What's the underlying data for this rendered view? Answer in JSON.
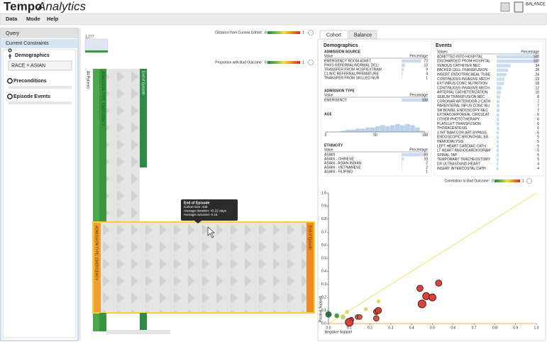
{
  "header": {
    "title_bold": "Tempo",
    "title_italic": "Analytics",
    "balance_label": "BALANCE"
  },
  "menu": [
    "Data",
    "Mode",
    "Help"
  ],
  "sidebar": {
    "tab": "Query",
    "section": "Current Constraints",
    "demographics": "Demographics",
    "constraint": "RACE = ASIAN",
    "preconditions": "Preconditions",
    "episode_events": "Episode Events"
  },
  "flow": {
    "cohort_size": "1,277",
    "distance_legend": {
      "label": "Distance from Current Cohort:",
      "min": 0,
      "max": 1
    },
    "outcome_legend": {
      "label": "Proportion with Bad Outcome:",
      "min": 0,
      "max": 1
    },
    "start_label": "All Patients",
    "end_label": "End of Episode",
    "constraint_label": "ADMISSION TYPE: EMERGENCY",
    "tooltip": {
      "title": "End of Episode",
      "lines": [
        "Cohort size: 436",
        "Average duration: 43.22 days",
        "Average outcome: 0.15"
      ]
    }
  },
  "tabs": [
    "Cohort",
    "Balance"
  ],
  "demographics": {
    "title": "Demographics",
    "sections": [
      {
        "name": "ADMISSION SOURCE",
        "columns": [
          "Value",
          "Percentage"
        ],
        "rows": [
          [
            "EMERGENCY ROOM ADMIT",
            73
          ],
          [
            "PHYS REFERRAL/NORMAL DELI",
            13
          ],
          [
            "TRANSFER FROM HOSP/EXTRAM",
            9
          ],
          [
            "CLINIC REFERRAL/PREMATURE",
            4
          ],
          [
            "TRANSFER FROM SKILLED NUR",
            1
          ]
        ]
      },
      {
        "name": "ADMISSION TYPE",
        "columns": [
          "Value",
          "Percentage"
        ],
        "rows": [
          [
            "EMERGENCY",
            100
          ]
        ]
      },
      {
        "name": "ETHNICITY",
        "columns": [
          "Value",
          "Percentage"
        ],
        "rows": [
          [
            "ASIAN",
            84
          ],
          [
            "ASIAN - CHINESE",
            10
          ],
          [
            "ASIAN - ASIAN INDIAN",
            2
          ],
          [
            "ASIAN - VIETNAMESE",
            2
          ],
          [
            "ASIAN - FILIPINO",
            1
          ]
        ]
      }
    ],
    "age": {
      "name": "AGE",
      "xlim": [
        0,
        100
      ],
      "xticks": [
        0,
        50,
        100
      ],
      "bins": [
        0,
        5,
        10,
        15,
        20,
        25,
        30,
        35,
        40,
        45,
        50,
        55,
        60,
        65,
        70,
        75,
        80,
        85,
        90,
        95,
        100
      ],
      "counts": [
        0,
        0,
        0,
        1,
        2,
        2,
        3,
        3,
        4,
        4,
        5,
        6,
        5,
        6,
        7,
        6,
        7,
        6,
        4,
        1
      ]
    }
  },
  "events": {
    "title": "Events",
    "columns": [
      "Values",
      "Percentage"
    ],
    "rows": [
      [
        "ADMITTED INTO HOSPITAL",
        100
      ],
      [
        "DISCHARGED FROM HOSPITAL",
        100
      ],
      [
        "VENOUS CATHETER NEC",
        34
      ],
      [
        "PACKED CELL TRANSFUSION",
        28
      ],
      [
        "INSERT ENDOTRACHEAL TUBE",
        24
      ],
      [
        "CONTINUOUS INVASIVE MECH",
        19
      ],
      [
        "EXT INFUS CONC NUTRITION",
        18
      ],
      [
        "CONTINUOUS INVASIVE MECH",
        12
      ],
      [
        "ARTERIAL CATHETERIZATION",
        10
      ],
      [
        "SERUM TRANSFUSION NEC",
        8
      ],
      [
        "CORONAR ARTERIOGR-2 CATH",
        7
      ],
      [
        "PARENTERAL INFUS CONC NU",
        7
      ],
      [
        "SM BOWEL ENDOSCOPY NEC",
        7
      ],
      [
        "EXTRACORPOREAL CIRCULAT",
        6
      ],
      [
        "OTHER PHOTOTHERAPY",
        6
      ],
      [
        "PLATELET TRANSFUSION",
        6
      ],
      [
        "THORACENTESIS",
        6
      ],
      [
        "1 INT MAM-COR ART BYPASS",
        5
      ],
      [
        "ENDOSCOPIC BRONCHIAL BX-",
        5
      ],
      [
        "HEMODIALYSIS",
        5
      ],
      [
        "LEFT HEART CARDIAC CATH",
        5
      ],
      [
        "LT HEART ANGIOCARDIOGRAM",
        5
      ],
      [
        "SPINAL TAP",
        5
      ],
      [
        "TEMPORARY TRACHEOSTOMY",
        5
      ],
      [
        "DX ULTRASOUND-HEART",
        4
      ],
      [
        "INSERT INTERCOSTAL CATH",
        4
      ]
    ]
  },
  "chart_data": {
    "type": "scatter",
    "legend_label": "Correlation to Bad Outcome:",
    "color_scale": {
      "min": 0,
      "max": 1
    },
    "xlabel": "Negative Support",
    "ylabel": "Positive Support",
    "xlim": [
      0,
      1
    ],
    "ylim": [
      0,
      1
    ],
    "xticks": [
      {
        "value": 0,
        "label": "0.0"
      },
      {
        "value": 0.1,
        "label": "0.1"
      },
      {
        "value": 0.2,
        "label": "0.2"
      },
      {
        "value": 0.3,
        "label": "0.3"
      },
      {
        "value": 0.4,
        "label": "0.4"
      },
      {
        "value": 0.5,
        "label": "0.5"
      },
      {
        "value": 0.6,
        "label": "0.6"
      },
      {
        "value": 0.7,
        "label": "0.7"
      },
      {
        "value": 0.8,
        "label": "0.8"
      },
      {
        "value": 0.9,
        "label": "0.9"
      },
      {
        "value": 1,
        "label": "1.0"
      }
    ],
    "yticks": [
      {
        "value": 0,
        "label": "0.0"
      },
      {
        "value": 0.1,
        "label": "0.1"
      },
      {
        "value": 0.2,
        "label": "0.2"
      },
      {
        "value": 0.3,
        "label": "0.3"
      },
      {
        "value": 0.4,
        "label": "0.4"
      },
      {
        "value": 0.5,
        "label": "0.5"
      },
      {
        "value": 0.6,
        "label": "0.6"
      },
      {
        "value": 0.7,
        "label": "0.7"
      },
      {
        "value": 0.8,
        "label": "0.8"
      },
      {
        "value": 0.9,
        "label": "0.9"
      },
      {
        "value": 1,
        "label": "1.0"
      }
    ],
    "x": [
      0.0,
      0.04,
      0.07,
      0.09,
      0.11,
      0.1,
      0.14,
      0.15,
      0.18,
      0.23,
      0.24,
      0.23,
      0.24,
      0.44,
      0.47,
      0.45,
      0.5,
      0.53
    ],
    "y": [
      0.07,
      0.06,
      0.05,
      0.09,
      0.03,
      0.01,
      0.05,
      0.05,
      0.11,
      0.09,
      0.1,
      0.04,
      0.17,
      0.27,
      0.21,
      0.15,
      0.2,
      0.31
    ],
    "sizes": [
      3,
      2,
      2,
      1.5,
      2,
      4,
      2,
      2,
      1.5,
      2.5,
      3,
      2.5,
      1.5,
      3,
      3.5,
      4,
      3.5,
      3
    ],
    "correlation": [
      0.0,
      0.15,
      0.45,
      0.5,
      0.9,
      0.95,
      0.85,
      0.85,
      0.5,
      0.9,
      0.95,
      0.9,
      0.5,
      0.95,
      0.95,
      0.95,
      0.95,
      0.95
    ]
  }
}
